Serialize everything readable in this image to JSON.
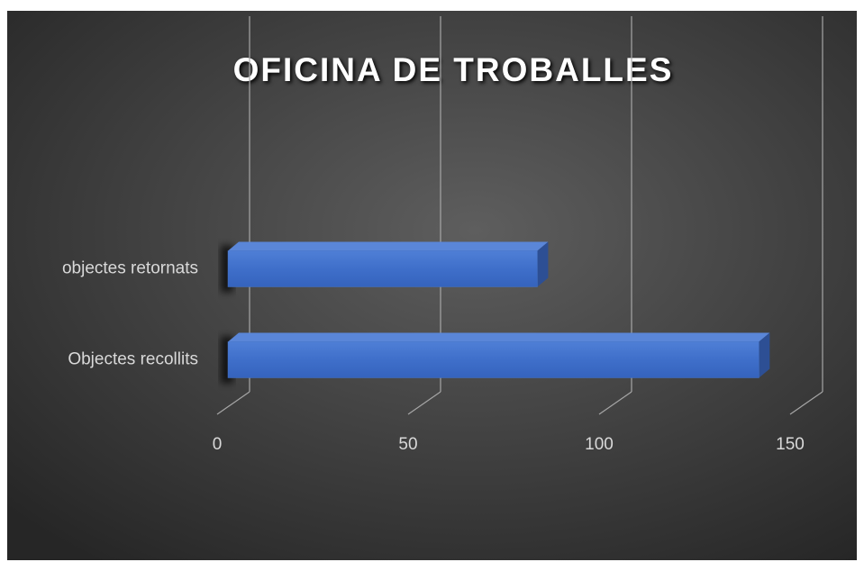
{
  "chart_data": {
    "type": "bar",
    "title": "OFICINA DE TROBALLES",
    "categories": [
      "Objectes recollits",
      "objectes retornats"
    ],
    "values": [
      139,
      81
    ],
    "color": "#4472c4",
    "xlim": [
      0,
      150
    ],
    "xticks": [
      0,
      50,
      100,
      150
    ],
    "grid": true
  }
}
